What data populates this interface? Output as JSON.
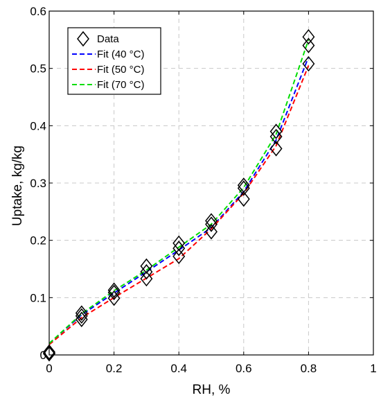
{
  "chart_data": {
    "type": "scatter",
    "xlabel": "RH, %",
    "ylabel": "Uptake, kg/kg",
    "xlim": [
      0,
      1
    ],
    "ylim": [
      0,
      0.6
    ],
    "x_ticks": [
      0,
      0.2,
      0.4,
      0.6,
      0.8,
      1
    ],
    "y_ticks": [
      0,
      0.1,
      0.2,
      0.3,
      0.4,
      0.5,
      0.6
    ],
    "x_tick_labels": [
      "0",
      "0.2",
      "0.4",
      "0.6",
      "0.8",
      "1"
    ],
    "y_tick_labels": [
      "0",
      "0.1",
      "0.2",
      "0.3",
      "0.4",
      "0.5",
      "0.6"
    ],
    "grid": true,
    "legend_position": "top-left",
    "data_points": {
      "name": "Data",
      "marker": "diamond",
      "x": [
        0,
        0,
        0,
        0.1,
        0.1,
        0.1,
        0.2,
        0.2,
        0.2,
        0.3,
        0.3,
        0.3,
        0.4,
        0.4,
        0.4,
        0.5,
        0.5,
        0.5,
        0.6,
        0.6,
        0.6,
        0.7,
        0.7,
        0.7,
        0.8,
        0.8,
        0.8
      ],
      "y": [
        0.005,
        0.003,
        0.002,
        0.073,
        0.068,
        0.062,
        0.113,
        0.109,
        0.099,
        0.155,
        0.145,
        0.133,
        0.195,
        0.186,
        0.172,
        0.234,
        0.228,
        0.215,
        0.296,
        0.291,
        0.272,
        0.39,
        0.381,
        0.36,
        0.555,
        0.54,
        0.508
      ]
    },
    "series": [
      {
        "name": "Fit (40 °C)",
        "color": "#0000ff",
        "style": "dashed",
        "x": [
          0,
          0.1,
          0.2,
          0.3,
          0.4,
          0.5,
          0.6,
          0.7,
          0.8
        ],
        "y": [
          0.02,
          0.07,
          0.108,
          0.145,
          0.183,
          0.222,
          0.285,
          0.375,
          0.52
        ]
      },
      {
        "name": "Fit (50 °C)",
        "color": "#ff0000",
        "style": "dashed",
        "x": [
          0,
          0.1,
          0.2,
          0.3,
          0.4,
          0.5,
          0.6,
          0.7,
          0.8
        ],
        "y": [
          0.018,
          0.065,
          0.1,
          0.134,
          0.168,
          0.22,
          0.282,
          0.365,
          0.505
        ]
      },
      {
        "name": "Fit (70 °C)",
        "color": "#00dd00",
        "style": "dashed",
        "x": [
          0,
          0.1,
          0.2,
          0.3,
          0.4,
          0.5,
          0.6,
          0.7,
          0.8
        ],
        "y": [
          0.02,
          0.072,
          0.112,
          0.148,
          0.188,
          0.228,
          0.292,
          0.385,
          0.55
        ]
      }
    ]
  }
}
